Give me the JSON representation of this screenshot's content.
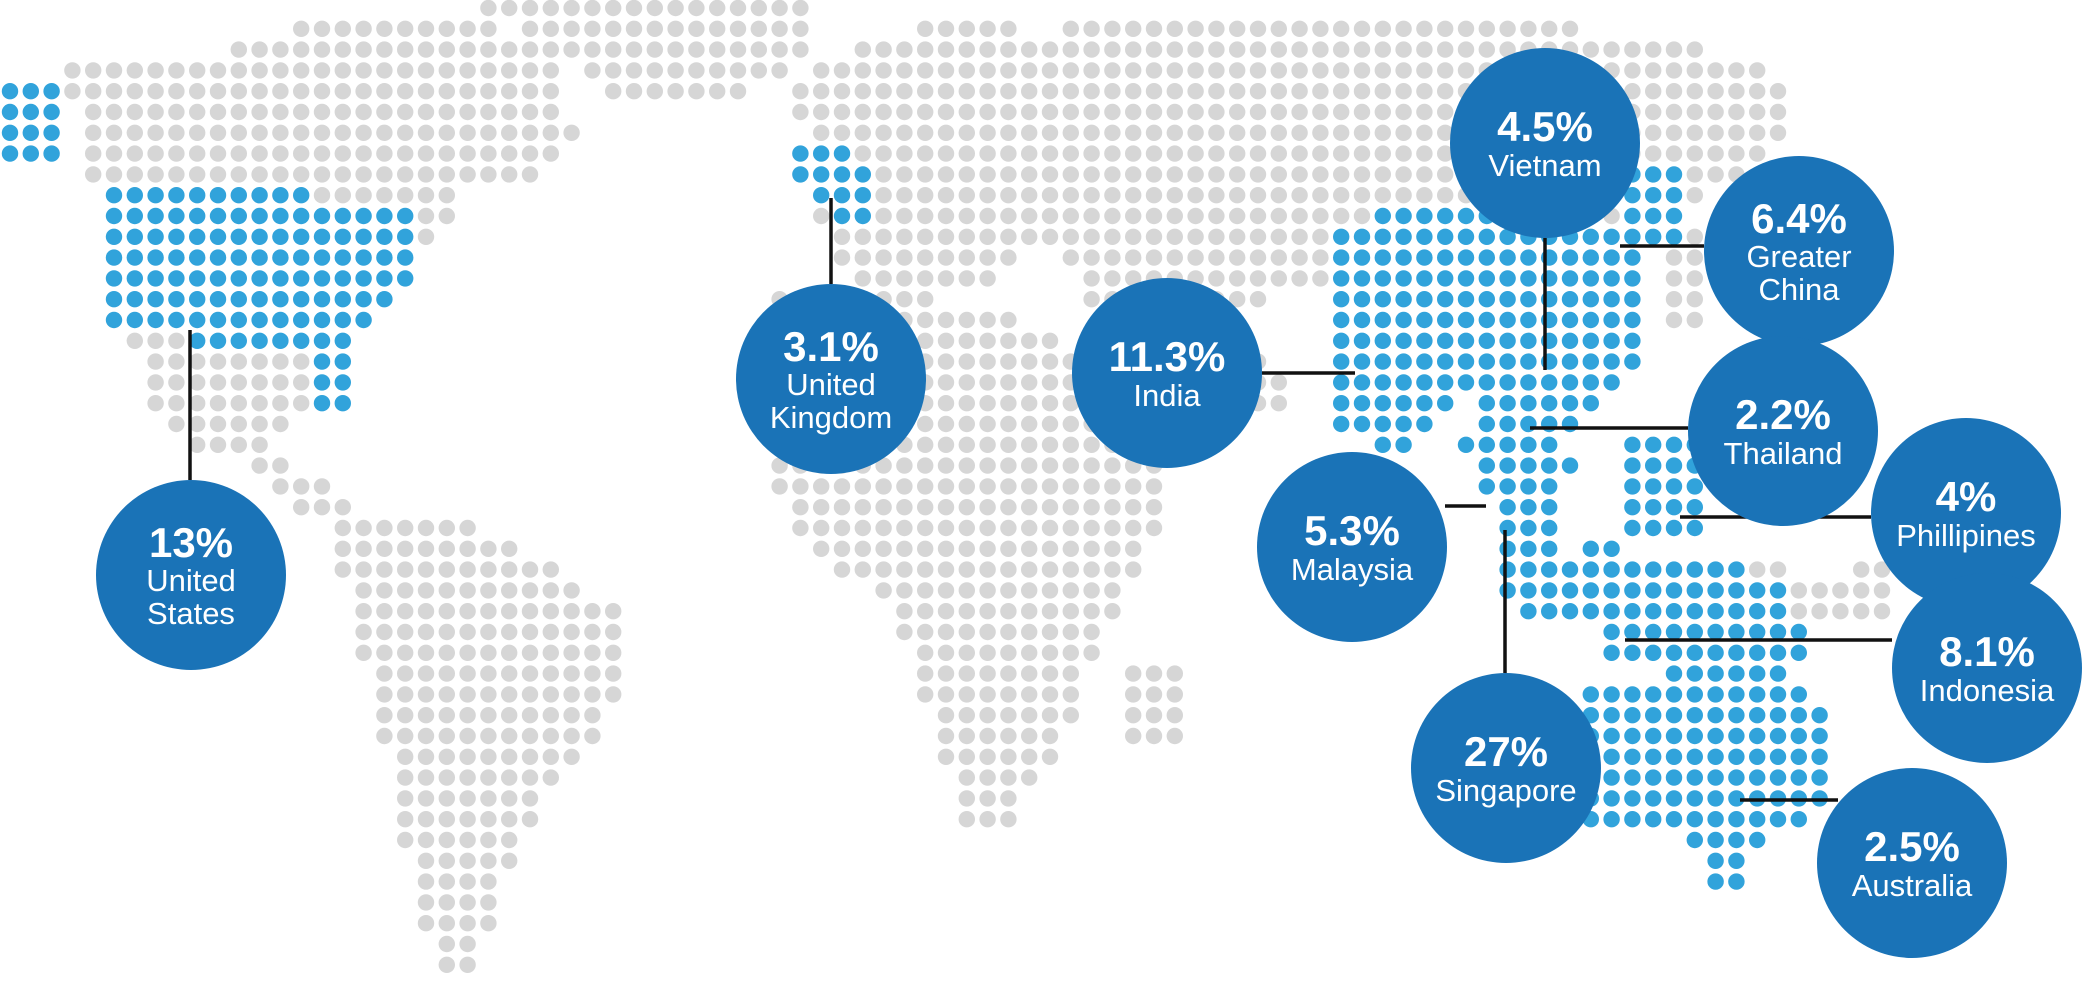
{
  "colors": {
    "land": "#d6d6d6",
    "highlight": "#31a3db",
    "bubble": "#1a73b7",
    "connector": "#111111"
  },
  "markers": [
    {
      "id": "united-states",
      "pct": "13%",
      "name": "United States"
    },
    {
      "id": "united-kingdom",
      "pct": "3.1%",
      "name": "United Kingdom"
    },
    {
      "id": "india",
      "pct": "11.3%",
      "name": "India"
    },
    {
      "id": "vietnam",
      "pct": "4.5%",
      "name": "Vietnam"
    },
    {
      "id": "greater-china",
      "pct": "6.4%",
      "name": "Greater China"
    },
    {
      "id": "thailand",
      "pct": "2.2%",
      "name": "Thailand"
    },
    {
      "id": "malaysia",
      "pct": "5.3%",
      "name": "Malaysia"
    },
    {
      "id": "phillipines",
      "pct": "4%",
      "name": "Phillipines"
    },
    {
      "id": "indonesia",
      "pct": "8.1%",
      "name": "Indonesia"
    },
    {
      "id": "singapore",
      "pct": "27%",
      "name": "Singapore"
    },
    {
      "id": "australia",
      "pct": "2.5%",
      "name": "Australia"
    }
  ]
}
